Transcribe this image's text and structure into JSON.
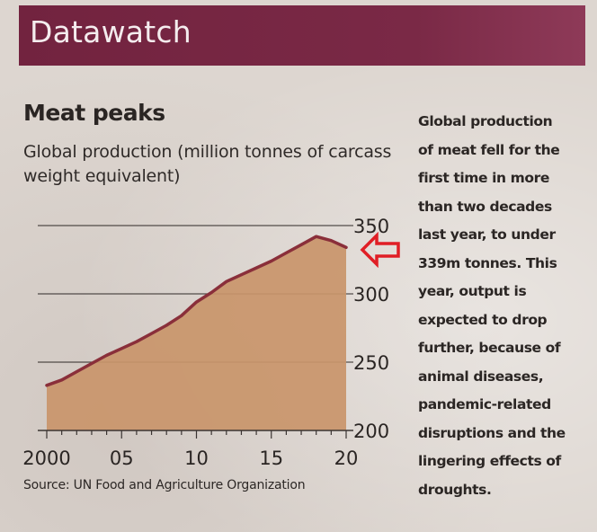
{
  "header": {
    "section_title": "Datawatch"
  },
  "chart_data": {
    "type": "area",
    "title": "Meat peaks",
    "subtitle": "Global production (million tonnes of carcass weight equivalent)",
    "xlabel": "",
    "ylabel": "",
    "x": [
      2000,
      2001,
      2002,
      2003,
      2004,
      2005,
      2006,
      2007,
      2008,
      2009,
      2010,
      2011,
      2012,
      2013,
      2014,
      2015,
      2016,
      2017,
      2018,
      2019,
      2020
    ],
    "values": [
      233,
      237,
      243,
      249,
      255,
      260,
      265,
      271,
      277,
      284,
      294,
      301,
      309,
      314,
      319,
      324,
      330,
      336,
      342,
      339,
      334
    ],
    "xlim": [
      2000,
      2020
    ],
    "ylim": [
      200,
      350
    ],
    "yticks": [
      200,
      250,
      300,
      350
    ],
    "ytick_labels": [
      "200",
      "250",
      "300",
      "350"
    ],
    "xticks": [
      2000,
      2005,
      2010,
      2015,
      2020
    ],
    "xtick_labels": [
      "2000",
      "05",
      "10",
      "15",
      "20"
    ],
    "grid": true,
    "y_axis_side": "right",
    "annotation": "red arrow pointing at 2020 value",
    "colors": {
      "fill": "#c9956a",
      "line": "#8a2f3a",
      "grid": "#3a3432",
      "arrow": "#e01e25"
    }
  },
  "blurb": {
    "lines": [
      "Global production",
      "of meat fell for the",
      "first time in more",
      "than two decades",
      "last year, to under",
      "339m tonnes. This",
      "year, output is",
      "expected to drop",
      "further, because of",
      "animal diseases,",
      "pandemic-related",
      "disruptions and the",
      "lingering effects of",
      "droughts."
    ]
  },
  "source": "Source: UN Food and Agriculture Organization"
}
